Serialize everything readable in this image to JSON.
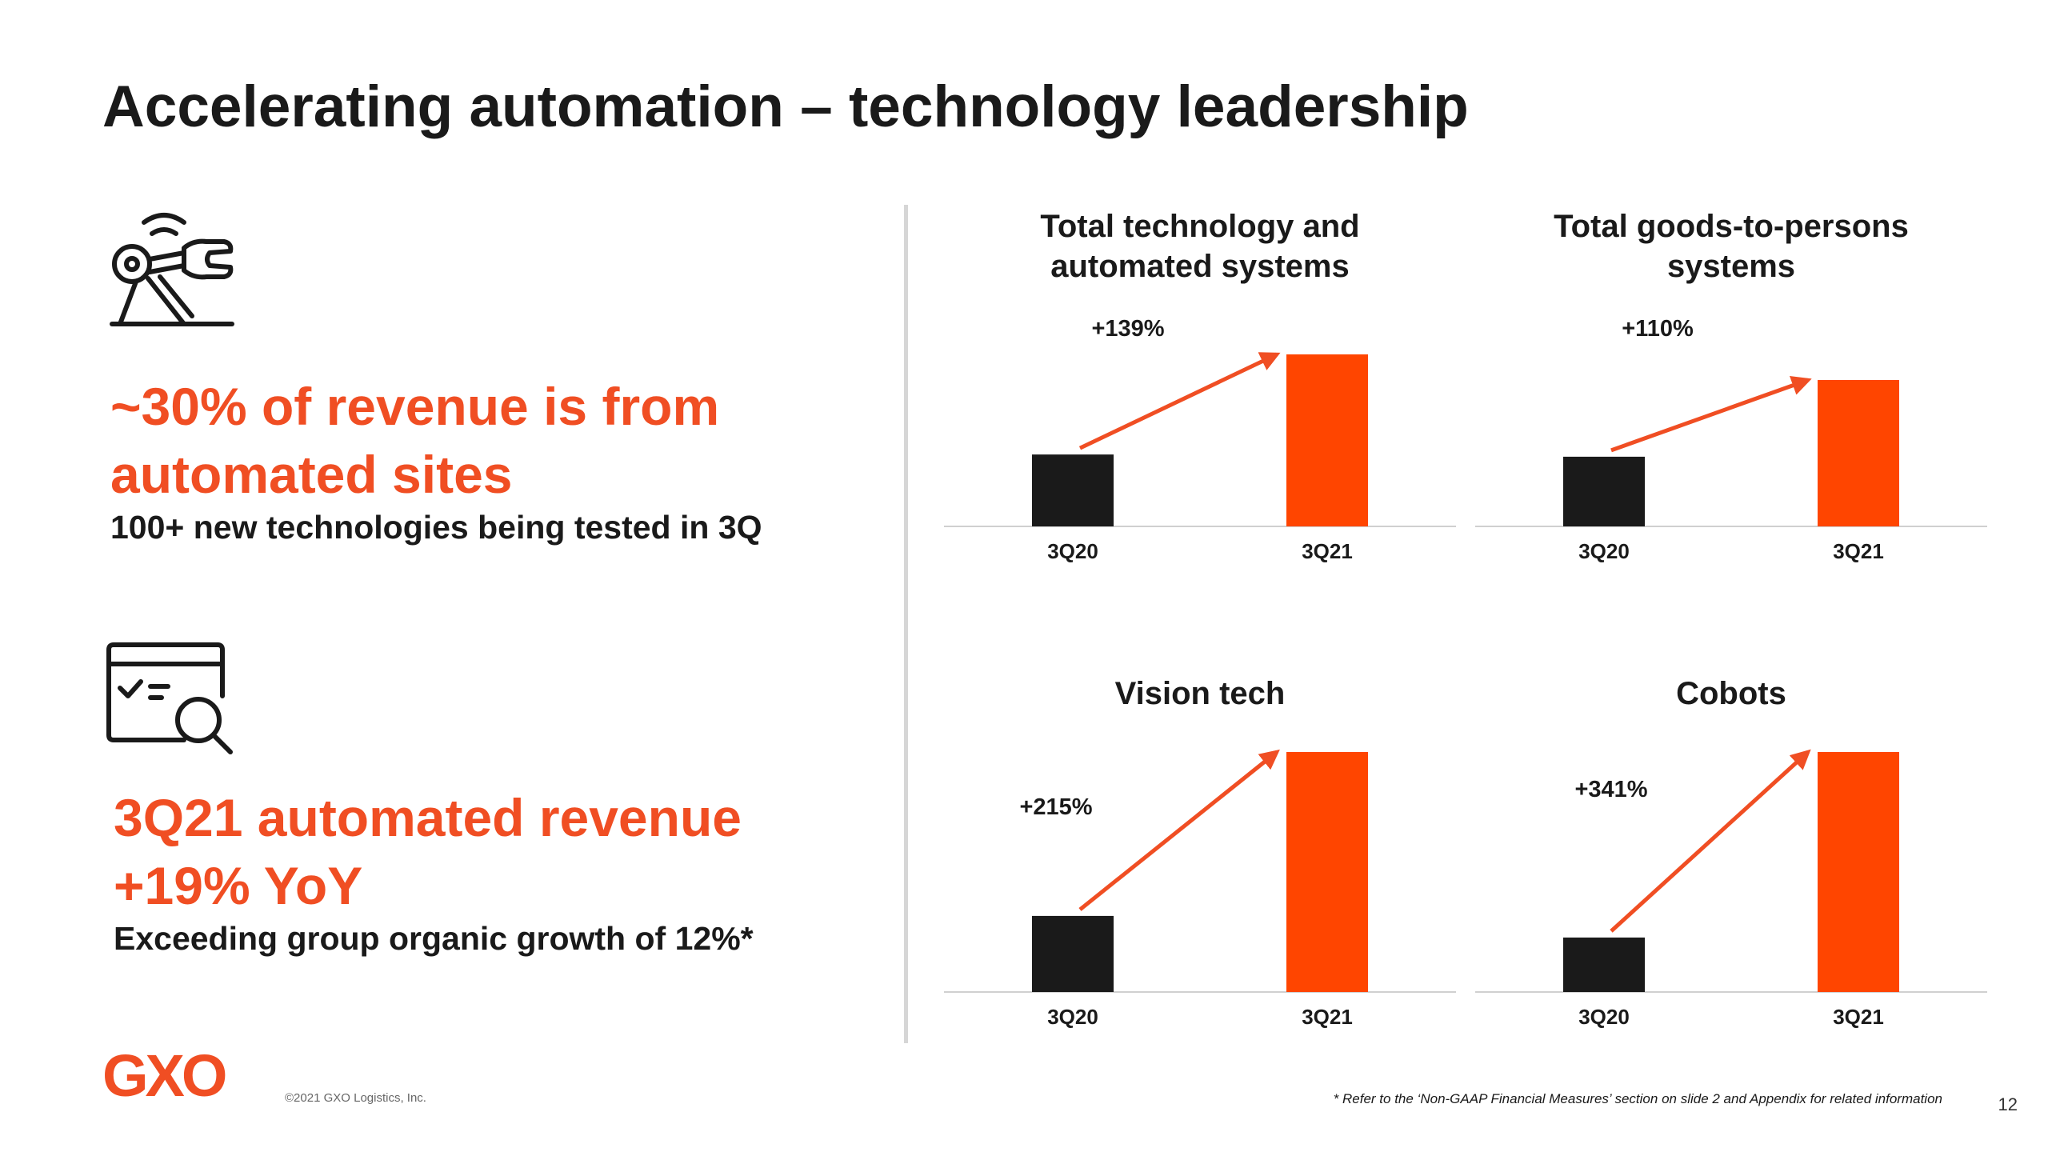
{
  "slide": {
    "title": "Accelerating automation – technology leadership",
    "left": {
      "block1": {
        "icon": "robotic-arm-icon",
        "headline_line1": "~30% of revenue is from",
        "headline_line2": "automated sites",
        "subtext": "100+ new technologies being tested in 3Q"
      },
      "block2": {
        "icon": "screen-checklist-magnifier-icon",
        "headline_line1": "3Q21 automated revenue",
        "headline_line2": "+19% YoY",
        "subtext": "Exceeding group organic growth of 12%*"
      }
    },
    "footer": {
      "logo_text": "GXO",
      "copyright": "©2021 GXO Logistics, Inc.",
      "footnote": "* Refer to the ‘Non-GAAP Financial Measures’ section on slide 2 and Appendix for related information",
      "page_number": "12"
    }
  },
  "colors": {
    "accent": "#f04e23",
    "bar_highlight": "#ff4500",
    "bar_base": "#1a1a1a",
    "text": "#1a1a1a"
  },
  "chart_data": [
    {
      "type": "bar",
      "title_line1": "Total technology and",
      "title_line2": "automated systems",
      "categories": [
        "3Q20",
        "3Q21"
      ],
      "values": [
        41.8,
        100
      ],
      "growth_label": "+139%"
    },
    {
      "type": "bar",
      "title_line1": "Total goods-to-persons",
      "title_line2": "systems",
      "categories": [
        "3Q20",
        "3Q21"
      ],
      "values": [
        47.6,
        100
      ],
      "growth_label": "+110%"
    },
    {
      "type": "bar",
      "title_line1": "Vision tech",
      "title_line2": "",
      "categories": [
        "3Q20",
        "3Q21"
      ],
      "values": [
        31.7,
        100
      ],
      "growth_label": "+215%"
    },
    {
      "type": "bar",
      "title_line1": "Cobots",
      "title_line2": "",
      "categories": [
        "3Q20",
        "3Q21"
      ],
      "values": [
        22.7,
        100
      ],
      "growth_label": "+341%"
    }
  ]
}
